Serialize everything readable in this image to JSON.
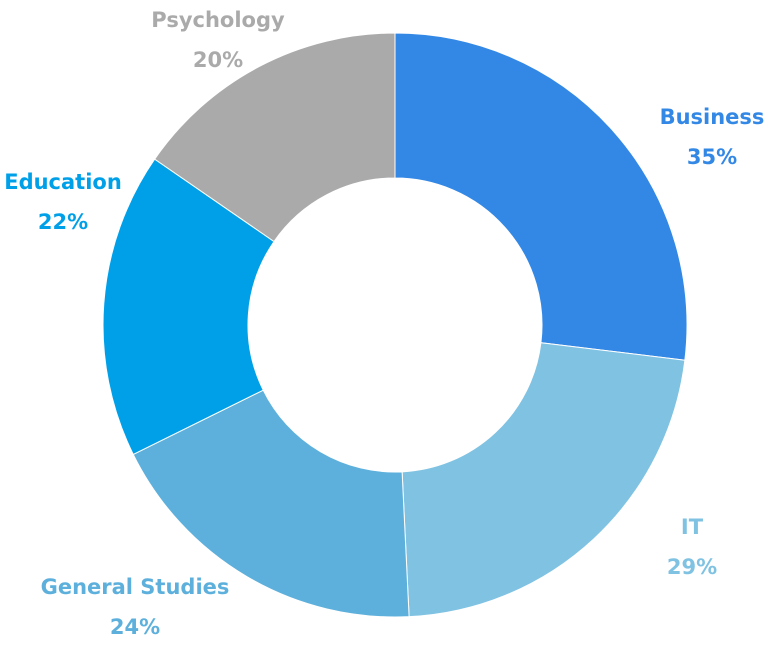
{
  "chart_data": {
    "type": "donut",
    "categories": [
      "Business",
      "IT",
      "General Studies",
      "Education",
      "Psychology"
    ],
    "values": [
      35,
      29,
      24,
      22,
      20
    ],
    "value_labels": [
      "35%",
      "29%",
      "24%",
      "22%",
      "20%"
    ],
    "colors": [
      "#3388e5",
      "#7fc2e2",
      "#5db0dc",
      "#00a0e9",
      "#aaaaaa"
    ]
  }
}
